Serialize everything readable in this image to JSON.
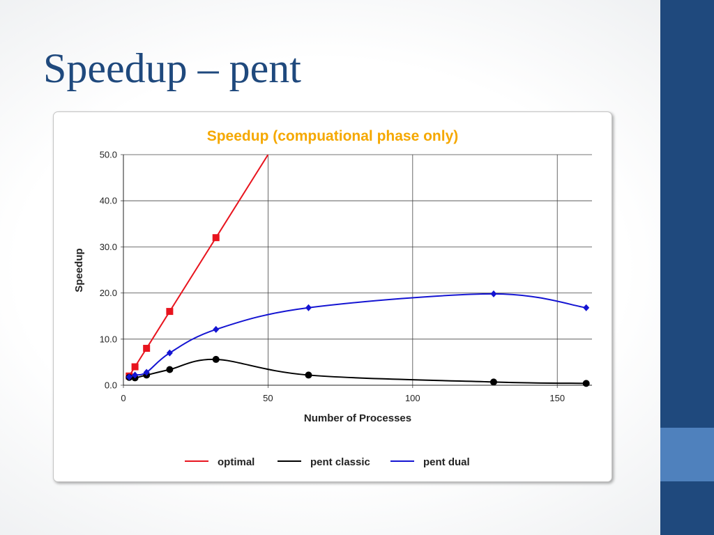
{
  "slide": {
    "title": "Speedup – pent"
  },
  "colors": {
    "sidebar": "#1f497d",
    "accent": "#4f81bd",
    "title": "#1f497d",
    "chart_title": "#f5a800"
  },
  "chart_data": {
    "type": "line",
    "title": "Speedup (compuational phase only)",
    "xlabel": "Number of Processes",
    "ylabel": "Speedup",
    "xlim": [
      0,
      162
    ],
    "ylim": [
      0,
      50
    ],
    "x_ticks": [
      0,
      50,
      100,
      150
    ],
    "x_tick_labels": [
      "0",
      "50",
      "100",
      "150"
    ],
    "y_ticks": [
      0,
      10,
      20,
      30,
      40,
      50
    ],
    "y_tick_labels": [
      "0.0",
      "10.0",
      "20.0",
      "30.0",
      "40.0",
      "50.0"
    ],
    "grid": true,
    "legend_position": "bottom",
    "series": [
      {
        "name": "optimal",
        "color": "#e8141e",
        "marker": "square",
        "marker_x": [
          2,
          4,
          8,
          16,
          32
        ],
        "x": [
          2,
          4,
          8,
          16,
          32,
          50
        ],
        "y": [
          2,
          4,
          8,
          16,
          32,
          50
        ]
      },
      {
        "name": "pent classic",
        "color": "#000000",
        "marker": "circle",
        "x": [
          2,
          4,
          8,
          16,
          32,
          64,
          128,
          160
        ],
        "y": [
          1.7,
          1.6,
          2.2,
          3.4,
          5.6,
          2.2,
          0.7,
          0.4
        ]
      },
      {
        "name": "pent dual",
        "color": "#1414d2",
        "marker": "diamond",
        "x": [
          2,
          4,
          8,
          16,
          32,
          64,
          128,
          160
        ],
        "y": [
          1.8,
          2.2,
          2.8,
          7.0,
          12.1,
          16.8,
          19.8,
          16.8
        ]
      }
    ]
  }
}
